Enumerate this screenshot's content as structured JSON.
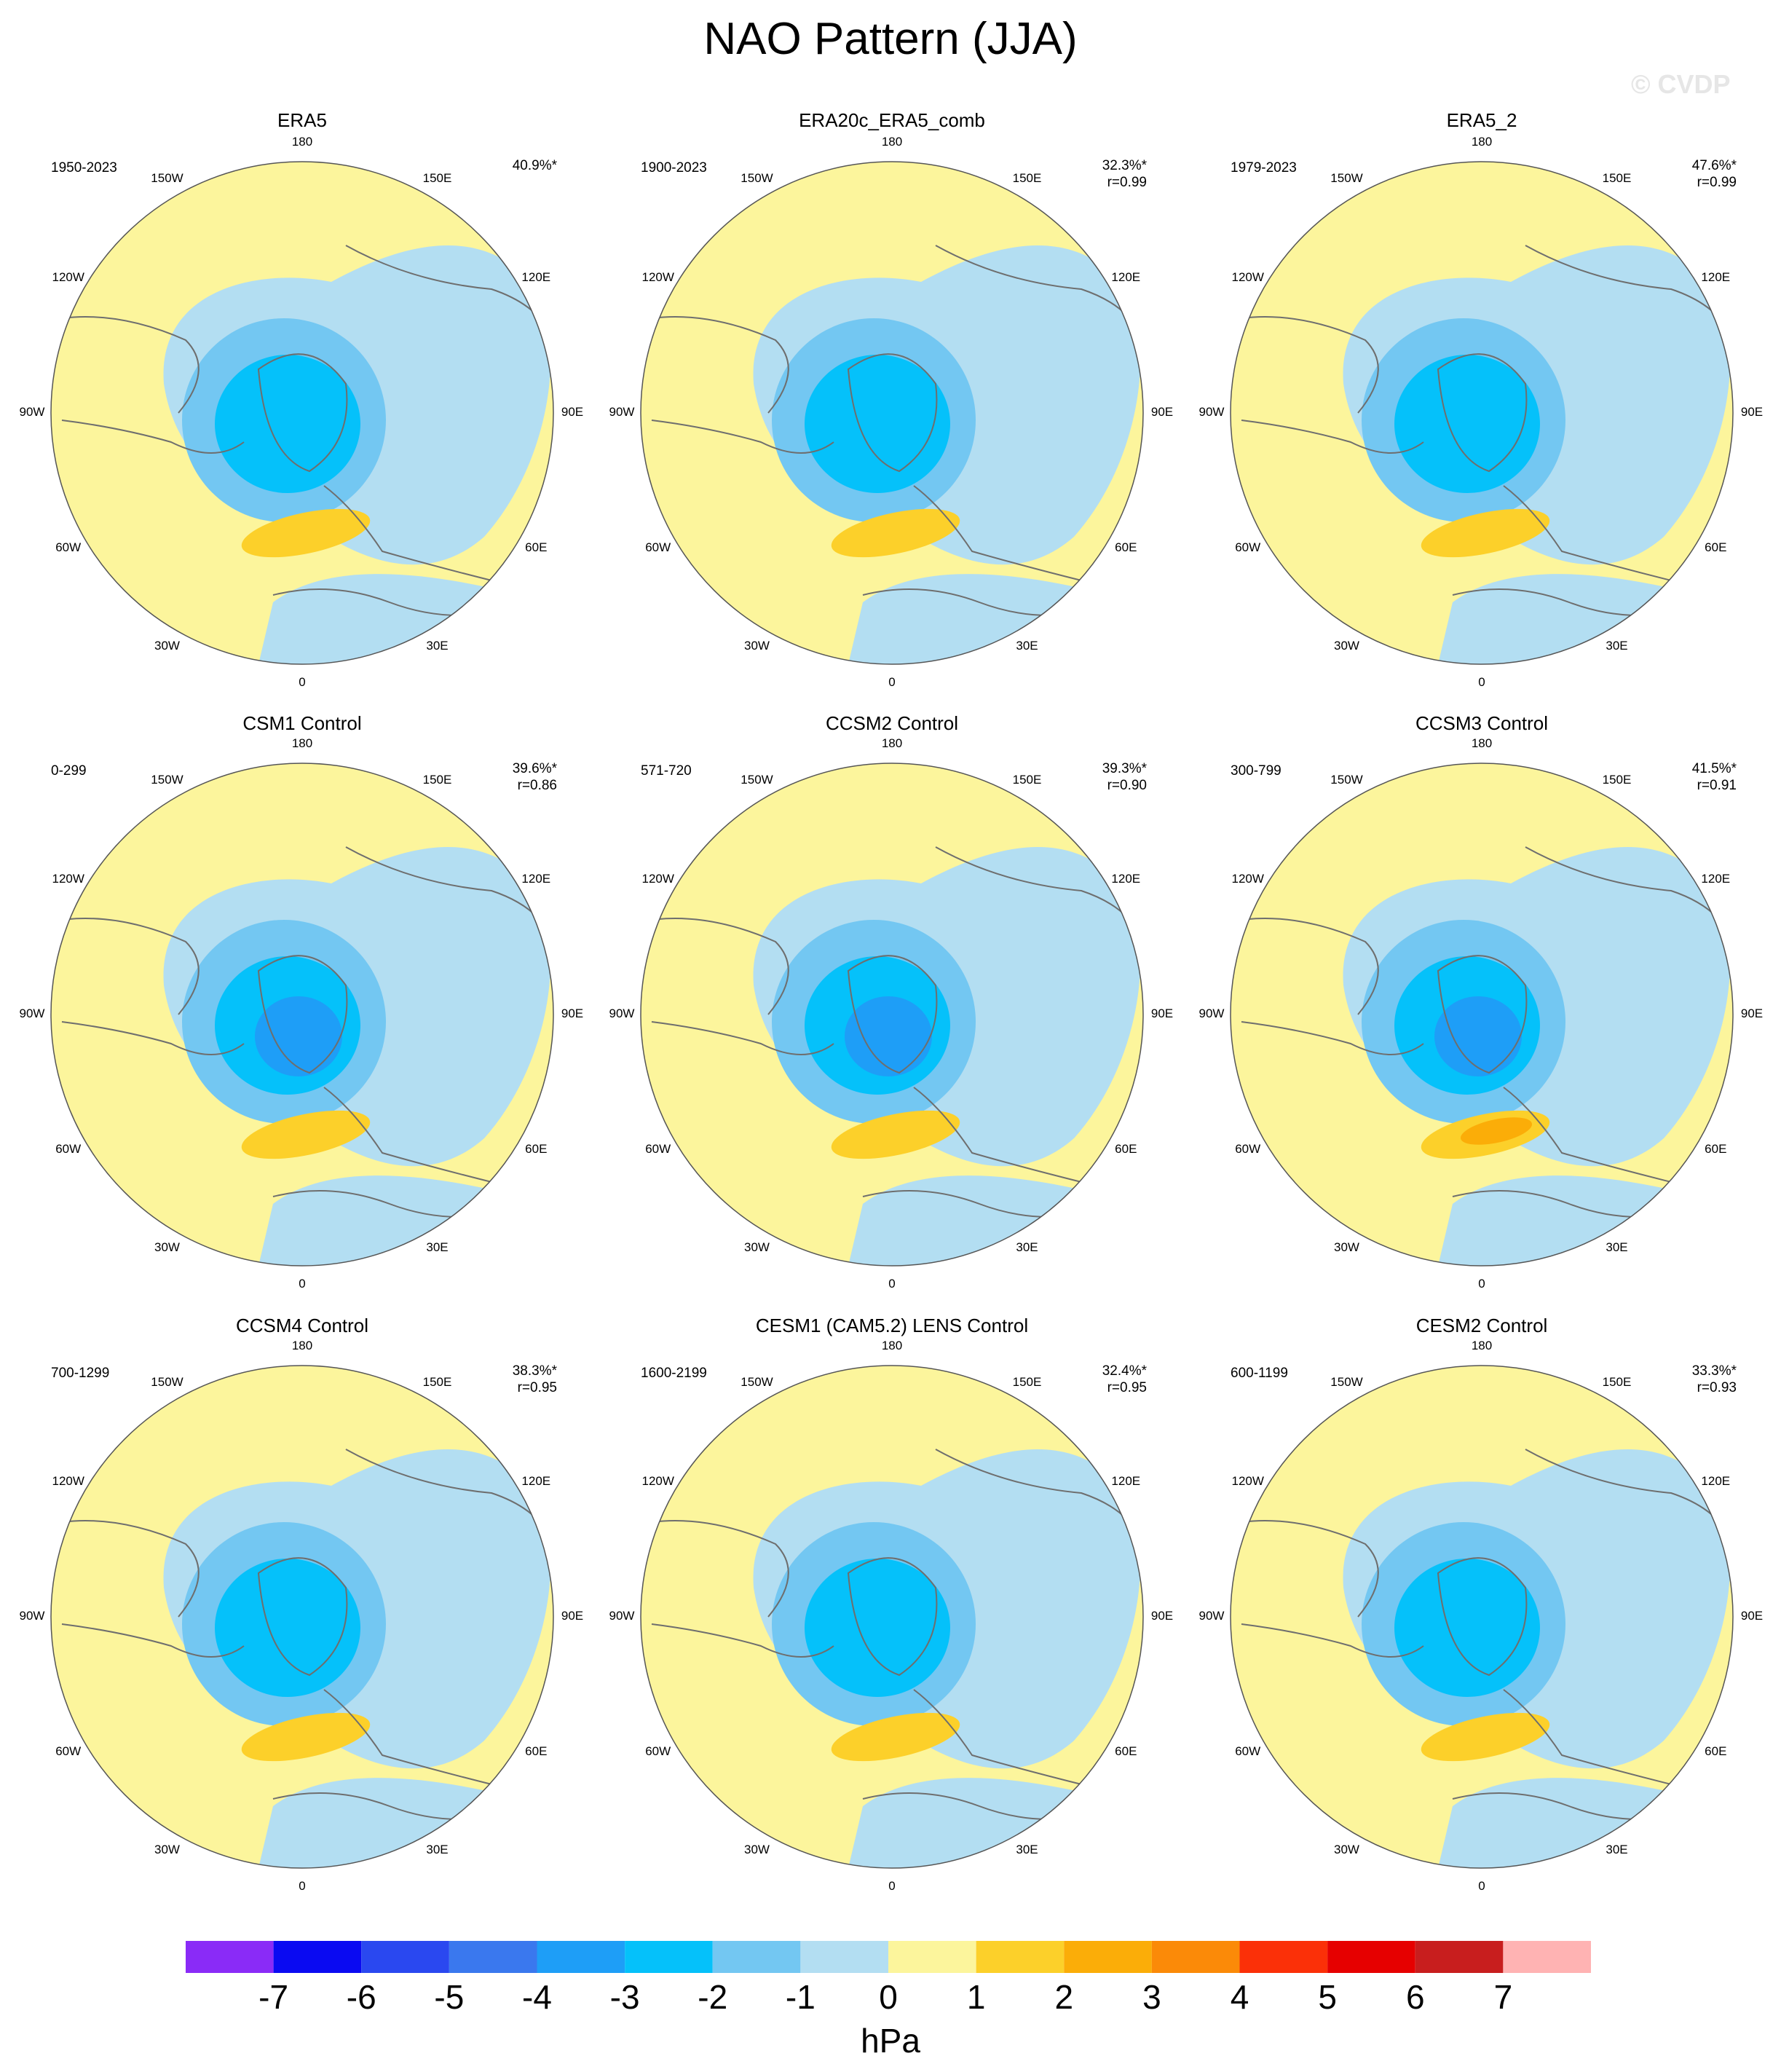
{
  "title": "NAO Pattern (JJA)",
  "watermark": "© CVDP",
  "longitude_labels": [
    "180",
    "150E",
    "120E",
    "90E",
    "60E",
    "30E",
    "0",
    "30W",
    "60W",
    "90W",
    "120W",
    "150W"
  ],
  "colors": {
    "minus1": "#b3def2",
    "minus2": "#73c7f2",
    "minus3": "#05c1fa",
    "minus4": "#1e9ef7",
    "plus0": "#fcf59c",
    "plus1": "#fcd02a",
    "plus2": "#fbad08",
    "coast": "#6e6e6e"
  },
  "panels": [
    {
      "title": "ERA5",
      "years": "1950-2023",
      "pct": "40.9%*",
      "r": ""
    },
    {
      "title": "ERA20c_ERA5_comb",
      "years": "1900-2023",
      "pct": "32.3%*",
      "r": "r=0.99"
    },
    {
      "title": "ERA5_2",
      "years": "1979-2023",
      "pct": "47.6%*",
      "r": "r=0.99"
    },
    {
      "title": "CSM1 Control",
      "years": "0-299",
      "pct": "39.6%*",
      "r": "r=0.86"
    },
    {
      "title": "CCSM2 Control",
      "years": "571-720",
      "pct": "39.3%*",
      "r": "r=0.90"
    },
    {
      "title": "CCSM3 Control",
      "years": "300-799",
      "pct": "41.5%*",
      "r": "r=0.91"
    },
    {
      "title": "CCSM4 Control",
      "years": "700-1299",
      "pct": "38.3%*",
      "r": "r=0.95"
    },
    {
      "title": "CESM1 (CAM5.2) LENS Control",
      "years": "1600-2199",
      "pct": "32.4%*",
      "r": "r=0.95"
    },
    {
      "title": "CESM2 Control",
      "years": "600-1199",
      "pct": "33.3%*",
      "r": "r=0.93"
    }
  ],
  "colorbar": {
    "labels": [
      "-7",
      "-6",
      "-5",
      "-4",
      "-3",
      "-2",
      "-1",
      "0",
      "1",
      "2",
      "3",
      "4",
      "5",
      "6",
      "7"
    ],
    "colors": [
      "#8a2bf7",
      "#0a0af2",
      "#2a48f0",
      "#3a78ee",
      "#1e9ef7",
      "#05c1fa",
      "#73c7f2",
      "#b3def2",
      "#fcf59c",
      "#fcd02a",
      "#fbad08",
      "#fb8a08",
      "#fb3008",
      "#e60000",
      "#c81e1e",
      "#ffb3b3"
    ],
    "units": "hPa"
  }
}
